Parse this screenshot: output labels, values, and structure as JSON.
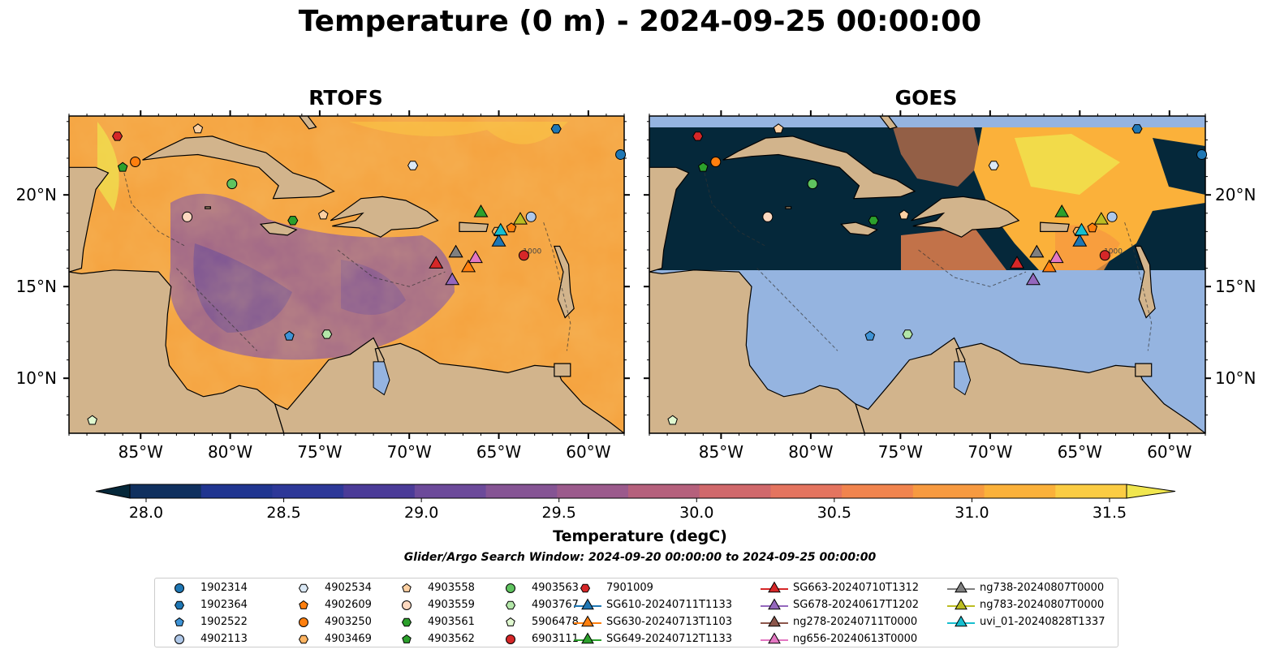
{
  "figure": {
    "title": "Temperature (0 m) - 2024-09-25 00:00:00",
    "search_window": "Glider/Argo Search Window: 2024-09-20 00:00:00 to 2024-09-25 00:00:00"
  },
  "chart_data": {
    "type": "heatmap",
    "panels": [
      {
        "title": "RTOFS",
        "lon_range": [
          -89,
          -58
        ],
        "lat_range": [
          7,
          24.3
        ],
        "field": "full-domain model SST"
      },
      {
        "title": "GOES",
        "lon_range": [
          -89,
          -58
        ],
        "lat_range": [
          7,
          24.3
        ],
        "field": "satellite SST, valid only 16–23.6°N",
        "no_data_color": "#95b4e0"
      }
    ],
    "x_ticks": [
      -85,
      -80,
      -75,
      -70,
      -65,
      -60
    ],
    "x_tick_labels": [
      "85°W",
      "80°W",
      "75°W",
      "70°W",
      "65°W",
      "60°W"
    ],
    "y_ticks": [
      10,
      15,
      20
    ],
    "y_tick_labels": [
      "10°N",
      "15°N",
      "20°N"
    ],
    "contour_label": "-1000",
    "colorbar": {
      "label": "Temperature (degC)",
      "min": 28.0,
      "max": 31.5,
      "step": 0.25,
      "tick_values": [
        28.0,
        28.5,
        29.0,
        29.5,
        30.0,
        30.5,
        31.0,
        31.5
      ],
      "tick_labels": [
        "28.0",
        "28.5",
        "29.0",
        "29.5",
        "30.0",
        "30.5",
        "31.0",
        "31.5"
      ],
      "colors": [
        "#05283a",
        "#10305f",
        "#203590",
        "#2d3898",
        "#4b3b98",
        "#6c4a9a",
        "#855494",
        "#9b5a8c",
        "#b5607c",
        "#d0686b",
        "#e4745f",
        "#f1844e",
        "#f79a40",
        "#fbb13a",
        "#fbcc43",
        "#f0e64f"
      ]
    },
    "floats": [
      {
        "id": "1902314",
        "lon": -58.2,
        "lat": 22.2,
        "marker": "circle",
        "color": "#1f77b4"
      },
      {
        "id": "1902364",
        "lon": -61.8,
        "lat": 23.6,
        "marker": "hexagon",
        "color": "#1f77b4"
      },
      {
        "id": "1902522",
        "lon": -76.7,
        "lat": 12.3,
        "marker": "pentagon",
        "color": "#3e93d6"
      },
      {
        "id": "4902113",
        "lon": -63.2,
        "lat": 18.8,
        "marker": "circle",
        "color": "#aec7e8"
      },
      {
        "id": "4902534",
        "lon": -69.8,
        "lat": 21.6,
        "marker": "hexagon",
        "color": "#dbe9f6"
      },
      {
        "id": "4902609",
        "lon": -64.3,
        "lat": 18.2,
        "marker": "pentagon",
        "color": "#ff7f0e"
      },
      {
        "id": "4903250",
        "lon": -85.3,
        "lat": 21.8,
        "marker": "circle",
        "color": "#ff7f0e"
      },
      {
        "id": "4903469",
        "lon": -65.1,
        "lat": 18.0,
        "marker": "hexagon",
        "color": "#fdb462"
      },
      {
        "id": "4903558",
        "lon": -74.8,
        "lat": 18.9,
        "marker": "pentagon",
        "color": "#fdd0a2"
      },
      {
        "id": "4903559",
        "lon": -82.4,
        "lat": 18.8,
        "marker": "circle",
        "color": "#fdd9c0"
      },
      {
        "id": "4903561",
        "lon": -76.5,
        "lat": 18.6,
        "marker": "hexagon",
        "color": "#2ca02c"
      },
      {
        "id": "4903562",
        "lon": -86.0,
        "lat": 21.5,
        "marker": "pentagon",
        "color": "#2ca02c"
      },
      {
        "id": "4903563",
        "lon": -79.9,
        "lat": 20.6,
        "marker": "circle",
        "color": "#5fc35f"
      },
      {
        "id": "4903767",
        "lon": -74.6,
        "lat": 12.4,
        "marker": "hexagon",
        "color": "#b3e6a8"
      },
      {
        "id": "5906478",
        "lon": -87.7,
        "lat": 7.7,
        "marker": "pentagon",
        "color": "#e0f8d0"
      },
      {
        "id": "6903111",
        "lon": -63.6,
        "lat": 16.7,
        "marker": "circle",
        "color": "#d62728"
      },
      {
        "id": "7901009",
        "lon": -86.3,
        "lat": 23.2,
        "marker": "hexagon",
        "color": "#d62728"
      },
      {
        "id": "4903558b",
        "lon": -81.8,
        "lat": 23.6,
        "marker": "pentagon",
        "color": "#fdd0a2",
        "label_hidden": true
      }
    ],
    "gliders": [
      {
        "id": "SG610-20240711T1133",
        "lon": -65.0,
        "lat": 17.5,
        "color": "#1f77b4"
      },
      {
        "id": "SG630-20240713T1103",
        "lon": -66.7,
        "lat": 16.1,
        "color": "#ff7f0e"
      },
      {
        "id": "SG649-20240712T1133",
        "lon": -66.0,
        "lat": 19.1,
        "color": "#2ca02c"
      },
      {
        "id": "SG663-20240710T1312",
        "lon": -68.5,
        "lat": 16.3,
        "color": "#d62728"
      },
      {
        "id": "SG678-20240617T1202",
        "lon": -67.6,
        "lat": 15.4,
        "color": "#9467bd"
      },
      {
        "id": "ng278-20240711T0000",
        "lon": -67.4,
        "lat": 16.9,
        "color": "#8c564b"
      },
      {
        "id": "ng656-20240613T0000",
        "lon": -66.3,
        "lat": 16.6,
        "color": "#e377c2"
      },
      {
        "id": "ng738-20240807T0000",
        "lon": -67.4,
        "lat": 16.9,
        "color": "#7f7f7f"
      },
      {
        "id": "ng783-20240807T0000",
        "lon": -63.8,
        "lat": 18.7,
        "color": "#bcbd22"
      },
      {
        "id": "uvi_01-20240828T1337",
        "lon": -64.9,
        "lat": 18.1,
        "color": "#17becf"
      }
    ]
  },
  "legend": {
    "columns": [
      [
        {
          "label": "1902314",
          "marker": "circle",
          "color": "#1f77b4"
        },
        {
          "label": "1902364",
          "marker": "hexagon",
          "color": "#1f77b4"
        },
        {
          "label": "1902522",
          "marker": "pentagon",
          "color": "#3e93d6"
        },
        {
          "label": "4902113",
          "marker": "circle",
          "color": "#aec7e8"
        }
      ],
      [
        {
          "label": "4902534",
          "marker": "hexagon",
          "color": "#dbe9f6"
        },
        {
          "label": "4902609",
          "marker": "pentagon",
          "color": "#ff7f0e"
        },
        {
          "label": "4903250",
          "marker": "circle",
          "color": "#ff7f0e"
        },
        {
          "label": "4903469",
          "marker": "hexagon",
          "color": "#fdb462"
        }
      ],
      [
        {
          "label": "4903558",
          "marker": "pentagon",
          "color": "#fdd0a2"
        },
        {
          "label": "4903559",
          "marker": "circle",
          "color": "#fdd9c0"
        },
        {
          "label": "4903561",
          "marker": "hexagon",
          "color": "#2ca02c"
        },
        {
          "label": "4903562",
          "marker": "pentagon",
          "color": "#2ca02c"
        }
      ],
      [
        {
          "label": "4903563",
          "marker": "circle",
          "color": "#5fc35f"
        },
        {
          "label": "4903767",
          "marker": "hexagon",
          "color": "#b3e6a8"
        },
        {
          "label": "5906478",
          "marker": "pentagon",
          "color": "#e0f8d0"
        },
        {
          "label": "6903111",
          "marker": "circle",
          "color": "#d62728"
        }
      ],
      [
        {
          "label": "7901009",
          "marker": "hexagon",
          "color": "#d62728"
        },
        {
          "label": "SG610-20240711T1133",
          "marker": "triangle-line",
          "color": "#1f77b4"
        },
        {
          "label": "SG630-20240713T1103",
          "marker": "triangle-line",
          "color": "#ff7f0e"
        },
        {
          "label": "SG649-20240712T1133",
          "marker": "triangle-line",
          "color": "#2ca02c"
        }
      ],
      [
        {
          "label": "SG663-20240710T1312",
          "marker": "triangle-line",
          "color": "#d62728"
        },
        {
          "label": "SG678-20240617T1202",
          "marker": "triangle-line",
          "color": "#9467bd"
        },
        {
          "label": "ng278-20240711T0000",
          "marker": "triangle-line",
          "color": "#8c564b"
        },
        {
          "label": "ng656-20240613T0000",
          "marker": "triangle-line",
          "color": "#e377c2"
        }
      ],
      [
        {
          "label": "ng738-20240807T0000",
          "marker": "triangle-line",
          "color": "#7f7f7f"
        },
        {
          "label": "ng783-20240807T0000",
          "marker": "triangle-line",
          "color": "#bcbd22"
        },
        {
          "label": "uvi_01-20240828T1337",
          "marker": "triangle-line",
          "color": "#17becf"
        }
      ]
    ]
  },
  "colors": {
    "land": "#d2b48c",
    "lake": "#95b4e0",
    "coast": "#000000"
  }
}
